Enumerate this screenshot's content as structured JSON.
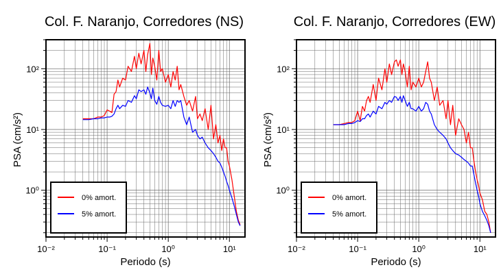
{
  "chart_data": [
    {
      "type": "line",
      "title": "Col. F. Naranjo, Corredores (NS)",
      "xlabel": "Periodo (s)",
      "ylabel": "PSA (cm/s²)",
      "xscale": "log",
      "yscale": "log",
      "xlim": [
        0.01,
        18
      ],
      "ylim": [
        0.17,
        300
      ],
      "grid": true,
      "legend": "bottom-left",
      "x_ticks": [
        "10⁻²",
        "10⁻¹",
        "10⁰",
        "10¹"
      ],
      "y_ticks": [
        "10⁰",
        "10¹",
        "10²"
      ],
      "series": [
        {
          "name": "0% amort.",
          "color": "#ff0000",
          "x": [
            0.04,
            0.05,
            0.06,
            0.07,
            0.08,
            0.09,
            0.1,
            0.11,
            0.12,
            0.13,
            0.14,
            0.15,
            0.16,
            0.18,
            0.2,
            0.22,
            0.25,
            0.28,
            0.3,
            0.33,
            0.36,
            0.4,
            0.43,
            0.46,
            0.5,
            0.53,
            0.56,
            0.6,
            0.65,
            0.7,
            0.75,
            0.8,
            0.9,
            1.0,
            1.1,
            1.2,
            1.3,
            1.4,
            1.5,
            1.6,
            1.8,
            2.0,
            2.2,
            2.5,
            2.8,
            3.0,
            3.3,
            3.6,
            4.0,
            4.5,
            5.0,
            5.5,
            6.0,
            6.5,
            7.0,
            7.5,
            8.0,
            8.5,
            9.0,
            9.5,
            10,
            11,
            12,
            13,
            14,
            15
          ],
          "y": [
            15,
            15,
            15,
            16,
            16,
            17,
            21,
            20,
            19,
            38,
            42,
            65,
            50,
            70,
            65,
            110,
            90,
            160,
            100,
            180,
            120,
            200,
            90,
            170,
            260,
            80,
            150,
            110,
            65,
            200,
            90,
            100,
            60,
            80,
            50,
            90,
            65,
            110,
            45,
            55,
            35,
            25,
            30,
            20,
            35,
            15,
            18,
            14,
            22,
            10,
            25,
            7,
            12,
            6,
            8,
            4.5,
            7,
            5,
            5,
            3,
            2.5,
            1.5,
            0.8,
            0.45,
            0.32,
            0.27
          ]
        },
        {
          "name": "5% amort.",
          "color": "#0000ff",
          "x": [
            0.04,
            0.05,
            0.06,
            0.07,
            0.08,
            0.09,
            0.1,
            0.11,
            0.12,
            0.13,
            0.14,
            0.15,
            0.16,
            0.18,
            0.2,
            0.22,
            0.25,
            0.28,
            0.3,
            0.33,
            0.36,
            0.4,
            0.43,
            0.46,
            0.5,
            0.53,
            0.56,
            0.6,
            0.65,
            0.7,
            0.75,
            0.8,
            0.9,
            1.0,
            1.1,
            1.2,
            1.3,
            1.4,
            1.5,
            1.6,
            1.8,
            2.0,
            2.2,
            2.5,
            2.8,
            3.0,
            3.3,
            3.6,
            4.0,
            4.5,
            5.0,
            5.5,
            6.0,
            6.5,
            7.0,
            7.5,
            8.0,
            8.5,
            9.0,
            9.5,
            10,
            11,
            12,
            13,
            14,
            15
          ],
          "y": [
            14.5,
            14.5,
            15,
            15,
            15.5,
            15.5,
            16,
            16,
            16.5,
            18,
            22,
            25,
            22,
            25,
            24,
            30,
            28,
            36,
            32,
            45,
            42,
            45,
            38,
            50,
            40,
            32,
            48,
            30,
            26,
            35,
            28,
            25,
            24,
            25,
            22,
            30,
            24,
            30,
            28,
            30,
            16,
            12,
            16,
            9,
            10,
            8,
            7,
            7.5,
            6,
            5,
            4.5,
            4,
            3.5,
            3,
            2.8,
            2.4,
            2,
            1.7,
            1.4,
            1.2,
            1.0,
            0.75,
            0.55,
            0.4,
            0.3,
            0.26
          ]
        }
      ]
    },
    {
      "type": "line",
      "title": "Col. F. Naranjo, Corredores (EW)",
      "xlabel": "Periodo (s)",
      "ylabel": "PSA (cm/s²)",
      "xscale": "log",
      "yscale": "log",
      "xlim": [
        0.01,
        18
      ],
      "ylim": [
        0.17,
        300
      ],
      "grid": true,
      "legend": "bottom-left",
      "x_ticks": [
        "10⁻²",
        "10⁻¹",
        "10⁰",
        "10¹"
      ],
      "y_ticks": [
        "10⁰",
        "10¹",
        "10²"
      ],
      "series": [
        {
          "name": "0% amort.",
          "color": "#ff0000",
          "x": [
            0.04,
            0.05,
            0.06,
            0.07,
            0.08,
            0.09,
            0.1,
            0.11,
            0.12,
            0.13,
            0.14,
            0.15,
            0.16,
            0.18,
            0.2,
            0.22,
            0.25,
            0.28,
            0.3,
            0.33,
            0.36,
            0.4,
            0.43,
            0.46,
            0.5,
            0.53,
            0.56,
            0.6,
            0.65,
            0.7,
            0.75,
            0.8,
            0.9,
            1.0,
            1.1,
            1.2,
            1.3,
            1.4,
            1.5,
            1.6,
            1.8,
            2.0,
            2.2,
            2.5,
            2.8,
            3.0,
            3.3,
            3.6,
            4.0,
            4.5,
            5.0,
            5.5,
            6.0,
            6.5,
            7.0,
            7.5,
            8.0,
            8.5,
            9.0,
            9.5,
            10,
            11,
            12,
            13,
            14,
            15
          ],
          "y": [
            12,
            12,
            12.5,
            13,
            13,
            14,
            20,
            14,
            24,
            20,
            30,
            35,
            28,
            55,
            30,
            70,
            45,
            100,
            60,
            120,
            80,
            130,
            140,
            110,
            140,
            80,
            120,
            90,
            50,
            110,
            45,
            60,
            50,
            70,
            50,
            60,
            90,
            130,
            70,
            60,
            30,
            50,
            25,
            30,
            15,
            30,
            12,
            25,
            8,
            15,
            12,
            10,
            6,
            9,
            5,
            5,
            3,
            2,
            1.5,
            1.2,
            0.9,
            0.7,
            0.45,
            0.4,
            0.3,
            0.2
          ]
        },
        {
          "name": "5% amort.",
          "color": "#0000ff",
          "x": [
            0.04,
            0.05,
            0.06,
            0.07,
            0.08,
            0.09,
            0.1,
            0.11,
            0.12,
            0.13,
            0.14,
            0.15,
            0.16,
            0.18,
            0.2,
            0.22,
            0.25,
            0.28,
            0.3,
            0.33,
            0.36,
            0.4,
            0.43,
            0.46,
            0.5,
            0.53,
            0.56,
            0.6,
            0.65,
            0.7,
            0.75,
            0.8,
            0.9,
            1.0,
            1.1,
            1.2,
            1.3,
            1.4,
            1.5,
            1.6,
            1.8,
            2.0,
            2.2,
            2.5,
            2.8,
            3.0,
            3.3,
            3.6,
            4.0,
            4.5,
            5.0,
            5.5,
            6.0,
            6.5,
            7.0,
            7.5,
            8.0,
            8.5,
            9.0,
            9.5,
            10,
            11,
            12,
            13,
            14,
            15
          ],
          "y": [
            12,
            12,
            12,
            12.5,
            12.5,
            13,
            14,
            13.5,
            15,
            15,
            17,
            18,
            16,
            20,
            18,
            24,
            22,
            28,
            26,
            30,
            28,
            35,
            34,
            30,
            35,
            28,
            36,
            30,
            24,
            28,
            22,
            22,
            20,
            24,
            20,
            22,
            28,
            26,
            20,
            18,
            12,
            10,
            9,
            8,
            7,
            6,
            5,
            4.5,
            4,
            3.8,
            3.5,
            3.2,
            3.0,
            2.8,
            2.5,
            2.5,
            1.8,
            1.3,
            1.0,
            0.8,
            0.6,
            0.45,
            0.38,
            0.32,
            0.26,
            0.2
          ]
        }
      ]
    }
  ]
}
